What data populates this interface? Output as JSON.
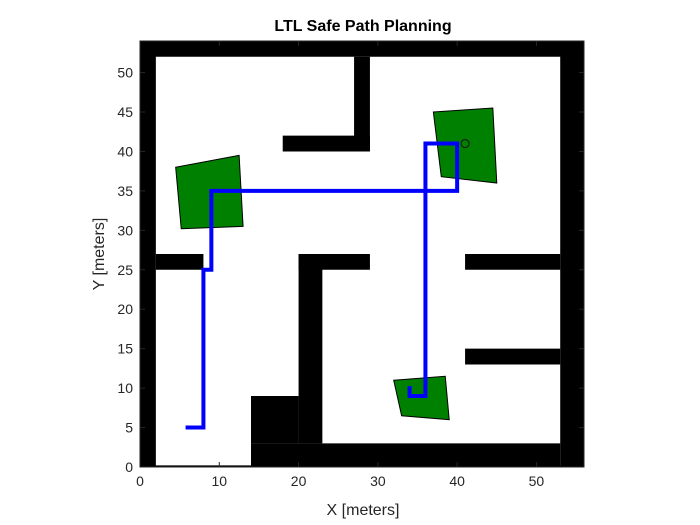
{
  "chart_data": {
    "type": "line",
    "title": "LTL Safe Path Planning",
    "xlabel": "X [meters]",
    "ylabel": "Y [meters]",
    "xlim": [
      0,
      56
    ],
    "ylim": [
      0,
      54
    ],
    "xticks": [
      0,
      10,
      20,
      30,
      40,
      50
    ],
    "yticks": [
      0,
      5,
      10,
      15,
      20,
      25,
      30,
      35,
      40,
      45,
      50
    ],
    "grid": false,
    "colors": {
      "obstacle": "#000000",
      "region": "#008000",
      "path": "#0000ff",
      "axes": "#262626"
    },
    "obstacles": [
      {
        "name": "wall-left",
        "x": [
          0,
          2,
          2,
          0
        ],
        "y": [
          0,
          0,
          54,
          54
        ]
      },
      {
        "name": "wall-right",
        "x": [
          53,
          56,
          56,
          53
        ],
        "y": [
          0,
          0,
          54,
          54
        ]
      },
      {
        "name": "wall-top",
        "x": [
          0,
          56,
          56,
          0
        ],
        "y": [
          52,
          52,
          54,
          54
        ]
      },
      {
        "name": "wall-bottom",
        "x": [
          0,
          56,
          56,
          0
        ],
        "y": [
          0,
          0,
          0.2,
          0.2
        ]
      },
      {
        "name": "bottom-block",
        "x": [
          14,
          53,
          53,
          14
        ],
        "y": [
          0,
          0,
          3,
          3
        ]
      },
      {
        "name": "lower-left-block",
        "x": [
          14,
          20,
          20,
          14
        ],
        "y": [
          3,
          3,
          9,
          9
        ]
      },
      {
        "name": "vertical-wall-center",
        "x": [
          20,
          23,
          23,
          20
        ],
        "y": [
          3,
          3,
          27,
          27
        ]
      },
      {
        "name": "horizontal-wall-center",
        "x": [
          20,
          29,
          29,
          20
        ],
        "y": [
          25,
          25,
          27,
          27
        ]
      },
      {
        "name": "left-shelf",
        "x": [
          2,
          8,
          8,
          2
        ],
        "y": [
          25,
          25,
          27,
          27
        ]
      },
      {
        "name": "top-vertical",
        "x": [
          27,
          29,
          29,
          27
        ],
        "y": [
          40,
          40,
          52,
          52
        ]
      },
      {
        "name": "top-horizontal",
        "x": [
          18,
          29,
          29,
          18
        ],
        "y": [
          40,
          40,
          42,
          42
        ]
      },
      {
        "name": "right-shelf-upper",
        "x": [
          41,
          53,
          53,
          41
        ],
        "y": [
          25,
          25,
          27,
          27
        ]
      },
      {
        "name": "right-shelf-lower",
        "x": [
          41,
          53,
          53,
          41
        ],
        "y": [
          13,
          13,
          15,
          15
        ]
      }
    ],
    "regions": [
      {
        "name": "region-left",
        "x": [
          4.5,
          12.5,
          13,
          5.2
        ],
        "y": [
          38,
          39.5,
          30.5,
          30.2
        ]
      },
      {
        "name": "region-top-right",
        "x": [
          37,
          44.5,
          45,
          38
        ],
        "y": [
          45,
          45.5,
          36,
          36.8
        ]
      },
      {
        "name": "region-bottom",
        "x": [
          32,
          38.5,
          39,
          33
        ],
        "y": [
          11,
          11.5,
          6,
          6.5
        ]
      }
    ],
    "series": [
      {
        "x": [
          6,
          8,
          8,
          9,
          9,
          40,
          40,
          36,
          36,
          34,
          34
        ],
        "y": [
          5,
          5,
          25,
          25,
          35,
          35,
          41,
          41,
          9,
          9,
          10
        ]
      }
    ],
    "goal_marker": {
      "x": 41,
      "y": 41
    }
  }
}
